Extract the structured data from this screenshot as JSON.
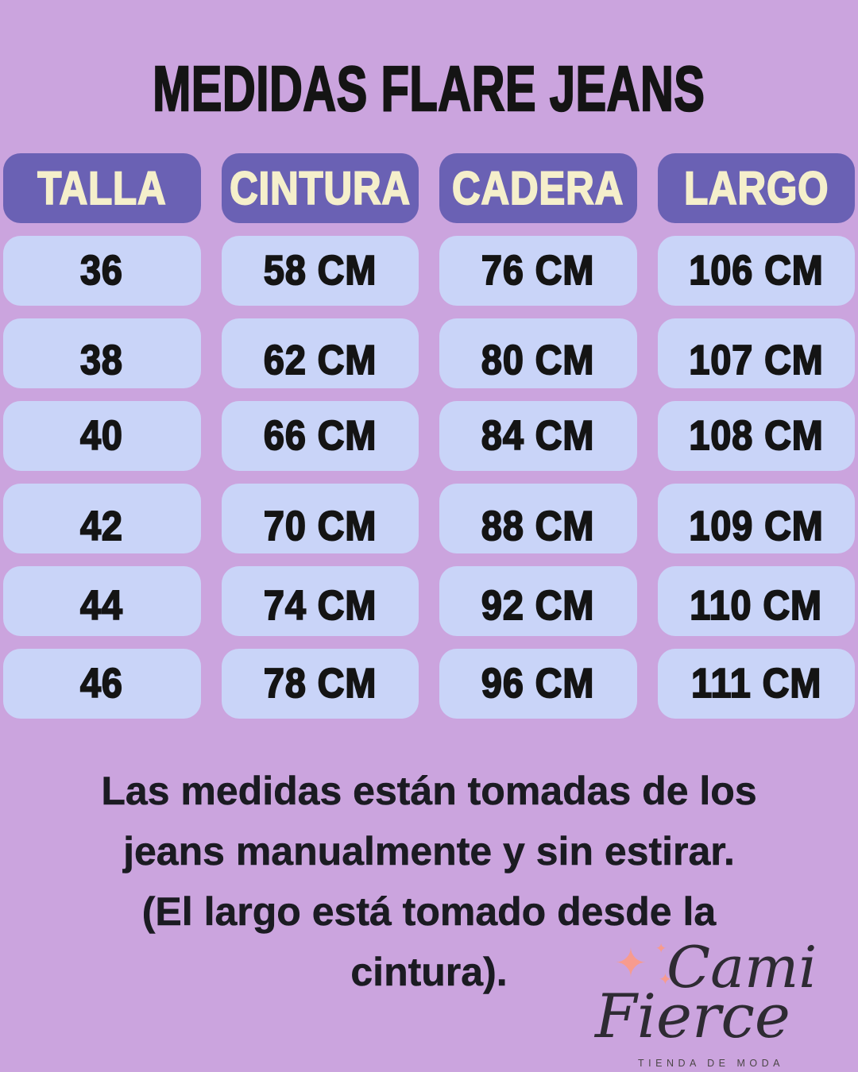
{
  "page": {
    "title": "MEDIDAS FLARE JEANS"
  },
  "chart_data": {
    "type": "table",
    "title": "MEDIDAS FLARE JEANS",
    "columns": [
      "TALLA",
      "CINTURA",
      "CADERA",
      "LARGO"
    ],
    "rows": [
      [
        "36",
        "58 CM",
        "76 CM",
        "106 CM"
      ],
      [
        "38",
        "62 CM",
        "80 CM",
        "107 CM"
      ],
      [
        "40",
        "66 CM",
        "84 CM",
        "108 CM"
      ],
      [
        "42",
        "70 CM",
        "88 CM",
        "109 CM"
      ],
      [
        "44",
        "74 CM",
        "92 CM",
        "110 CM"
      ],
      [
        "46",
        "78 CM",
        "96 CM",
        "111 CM"
      ]
    ],
    "note": "Las medidas están tomadas de los jeans manualmente y sin estirar. (El largo está tomado desde la cintura)."
  },
  "note": {
    "lines": [
      "Las medidas están tomadas de los",
      "jeans manualmente y sin estirar.",
      "(El largo está tomado desde la",
      "cintura)."
    ]
  },
  "logo": {
    "brand_top": "Cami",
    "brand_bottom": "Fierce",
    "tagline": "TIENDA DE MODA",
    "sparkle_icon": "✦"
  },
  "colors": {
    "background": "#cba4de",
    "header_bg": "#6a61b4",
    "header_text": "#f5efcb",
    "cell_bg": "#c9d4f8",
    "ink": "#141414",
    "note_ink": "#1b1b22",
    "sparkle": "#f79b8e",
    "logo_ink": "#2e2b33",
    "tagline_ink": "#4b4646"
  }
}
